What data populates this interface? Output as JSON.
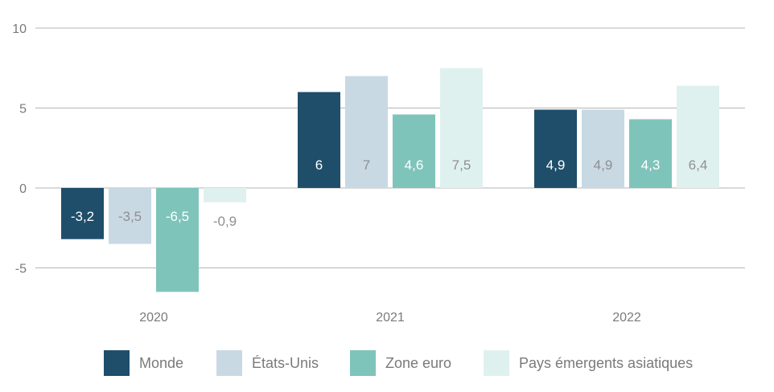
{
  "chart_data": {
    "type": "bar",
    "categories": [
      "2020",
      "2021",
      "2022"
    ],
    "series": [
      {
        "name": "Monde",
        "values": [
          -3.2,
          6,
          4.9
        ],
        "labels": [
          "-3,2",
          "6",
          "4,9"
        ],
        "color": "#1f4e6b",
        "label_color": "#ffffff"
      },
      {
        "name": "États-Unis",
        "values": [
          -3.5,
          7,
          4.9
        ],
        "labels": [
          "-3,5",
          "7",
          "4,9"
        ],
        "color": "#c8d9e4",
        "label_color": "#8f8f8f"
      },
      {
        "name": "Zone euro",
        "values": [
          -6.5,
          4.6,
          4.3
        ],
        "labels": [
          "-6,5",
          "4,6",
          "4,3"
        ],
        "color": "#7fc4ba",
        "label_color": "#ffffff"
      },
      {
        "name": "Pays émergents asiatiques",
        "values": [
          -0.9,
          7.5,
          6.4
        ],
        "labels": [
          "-0,9",
          "7,5",
          "6,4"
        ],
        "color": "#dff1ef",
        "label_color": "#8f8f8f"
      }
    ],
    "yticks": [
      10,
      5,
      0,
      -5
    ],
    "ytick_labels": [
      "10",
      "5",
      "0",
      "-5"
    ],
    "ylim": [
      -8,
      10
    ],
    "grid": true,
    "legend_position": "bottom",
    "title": "",
    "xlabel": "",
    "ylabel": ""
  }
}
